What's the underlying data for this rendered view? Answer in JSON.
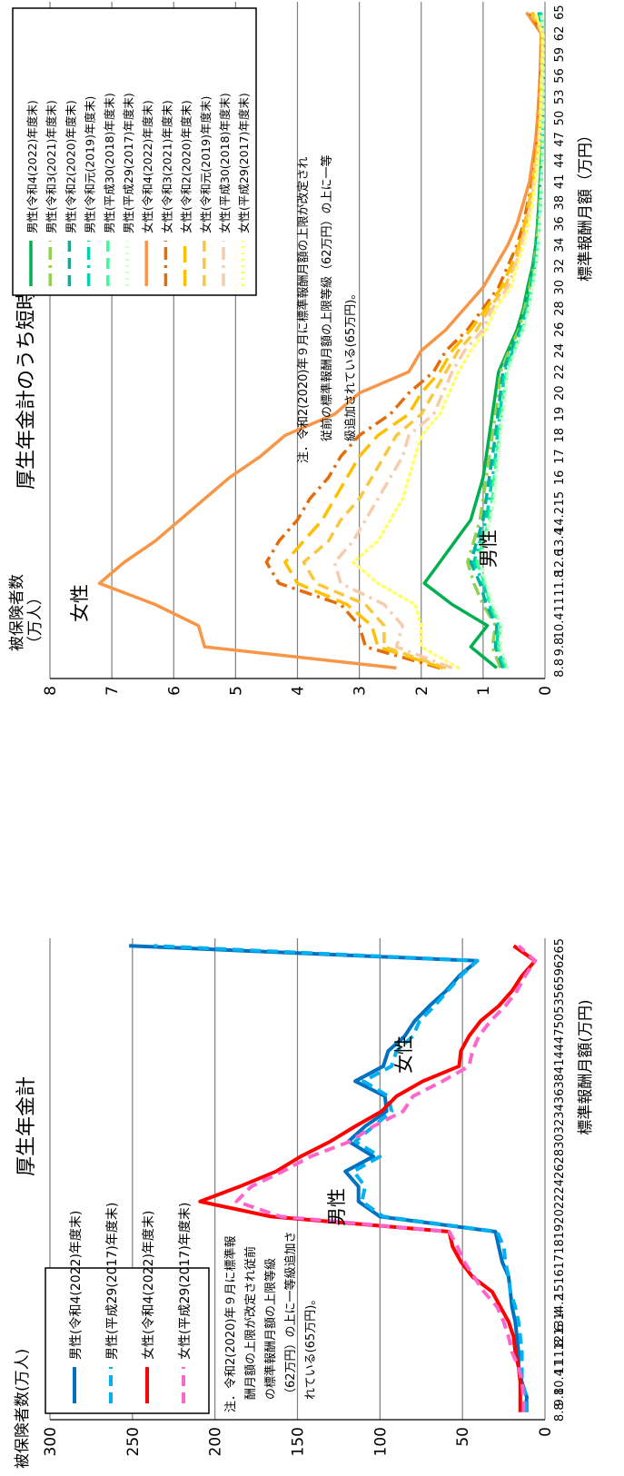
{
  "chart_data": [
    {
      "type": "line",
      "title": "厚生年金計",
      "ylabel": "被保険者数(万人)",
      "xlabel": "標準報酬月額(万円)",
      "ylim": [
        0,
        300
      ],
      "yticks": [
        "0",
        "50",
        "100",
        "150",
        "200",
        "250",
        "300"
      ],
      "grid": true,
      "legend_position": "top-left",
      "categories": [
        "8.8",
        "9.8",
        "10.4",
        "11",
        "11.8",
        "12.6",
        "13.4",
        "14.2",
        "15",
        "16",
        "17",
        "18",
        "19",
        "20",
        "22",
        "24",
        "26",
        "28",
        "30",
        "32",
        "34",
        "36",
        "38",
        "41",
        "44",
        "47",
        "50",
        "53",
        "56",
        "59",
        "62",
        "65"
      ],
      "series": [
        {
          "name": "男性(令和4(2022)年度末)",
          "color": "#0070c0",
          "dash": "solid",
          "values": [
            12,
            11,
            14,
            16,
            16,
            17,
            18,
            20,
            21,
            22,
            26,
            28,
            30,
            100,
            113,
            113,
            121,
            104,
            119,
            109,
            96,
            97,
            115,
            98,
            95,
            85,
            79,
            70,
            60,
            52,
            41,
            252
          ]
        },
        {
          "name": "男性(平成29(2017)年度末)",
          "color": "#00b0f0",
          "dash": "dashed",
          "values": [
            11,
            11,
            14,
            14,
            14,
            15,
            16,
            18,
            21,
            22,
            24,
            25,
            29,
            98,
            111,
            109,
            116,
            100,
            115,
            104,
            93,
            95,
            110,
            93,
            90,
            80,
            76,
            67,
            59,
            51,
            41,
            237
          ]
        },
        {
          "name": "女性(令和4(2022)年度末)",
          "color": "#ff0000",
          "dash": "solid",
          "values": [
            15,
            15,
            15,
            16,
            18,
            19,
            22,
            27,
            32,
            44,
            51,
            56,
            58,
            166,
            209,
            185,
            163,
            148,
            130,
            115,
            99,
            90,
            74,
            52,
            51,
            46,
            39,
            28,
            20,
            14,
            6,
            19
          ]
        },
        {
          "name": "女性(平成29(2017)年度末)",
          "color": "#ff66cc",
          "dash": "dashed",
          "values": [
            13,
            13,
            14,
            16,
            20,
            22,
            25,
            29,
            37,
            43,
            49,
            53,
            58,
            160,
            187,
            178,
            159,
            142,
            118,
            104,
            86,
            80,
            62,
            46,
            44,
            40,
            33,
            24,
            17,
            12,
            6,
            16
          ]
        }
      ],
      "annotations": [
        "男性",
        "女性"
      ],
      "note": [
        "注．令和2(2020)年９月に標準報",
        "酬月額の上限が改定され従前",
        "の標準報酬月額の上限等級",
        "（62万円）の上に一等級追加さ",
        "れている(65万円)。"
      ]
    },
    {
      "type": "line",
      "title": "厚生年金計のうち短時間労働者",
      "ylabel": [
        "被保険者数",
        "（万人）"
      ],
      "xlabel": "標準報酬月額（万円）",
      "ylim": [
        0,
        8
      ],
      "yticks": [
        "0",
        "1",
        "2",
        "3",
        "4",
        "5",
        "6",
        "7",
        "8"
      ],
      "grid": true,
      "legend_position": "top-right",
      "categories": [
        "8.8",
        "9.8",
        "10.4",
        "11",
        "11.8",
        "12.6",
        "13.4",
        "14.2",
        "15",
        "16",
        "17",
        "18",
        "19",
        "20",
        "22",
        "24",
        "26",
        "28",
        "30",
        "32",
        "34",
        "36",
        "38",
        "41",
        "44",
        "47",
        "50",
        "53",
        "56",
        "59",
        "62",
        "65"
      ],
      "series": [
        {
          "name": "男性(令和4(2022)年度末)",
          "color": "#00b050",
          "dash": "solid",
          "values": [
            0.78,
            1.2,
            0.93,
            1.5,
            1.95,
            1.7,
            1.45,
            1.2,
            1.1,
            1.0,
            0.95,
            0.9,
            0.85,
            0.8,
            0.75,
            0.6,
            0.45,
            0.35,
            0.28,
            0.2,
            0.15,
            0.12,
            0.1,
            0.08,
            0.06,
            0.05,
            0.04,
            0.04,
            0.03,
            0.03,
            0.03,
            0.1
          ]
        },
        {
          "name": "男性(令和3(2021)年度末)",
          "color": "#92d050",
          "dash": "dashdot",
          "values": [
            0.72,
            0.85,
            0.8,
            1.0,
            1.15,
            1.25,
            1.15,
            1.05,
            1.0,
            0.95,
            0.9,
            0.85,
            0.8,
            0.75,
            0.72,
            0.58,
            0.42,
            0.33,
            0.25,
            0.18,
            0.14,
            0.11,
            0.09,
            0.07,
            0.06,
            0.05,
            0.04,
            0.04,
            0.03,
            0.03,
            0.03,
            0.09
          ]
        },
        {
          "name": "男性(令和2(2020)年度末)",
          "color": "#00b0a0",
          "dash": "dashed",
          "values": [
            0.68,
            0.8,
            0.78,
            0.95,
            1.05,
            1.2,
            1.1,
            1.0,
            0.95,
            0.9,
            0.85,
            0.8,
            0.76,
            0.72,
            0.68,
            0.55,
            0.4,
            0.3,
            0.23,
            0.17,
            0.13,
            0.1,
            0.08,
            0.07,
            0.05,
            0.04,
            0.04,
            0.03,
            0.03,
            0.03,
            0.03,
            0.08
          ]
        },
        {
          "name": "男性(令和元(2019)年度末)",
          "color": "#00d2b0",
          "dash": "dashdot",
          "values": [
            0.65,
            0.78,
            0.75,
            0.9,
            1.0,
            1.15,
            1.05,
            0.95,
            0.9,
            0.85,
            0.8,
            0.77,
            0.73,
            0.69,
            0.65,
            0.52,
            0.38,
            0.29,
            0.22,
            0.16,
            0.12,
            0.1,
            0.08,
            0.06,
            0.05,
            0.04,
            0.04,
            0.03,
            0.03,
            0.03,
            0.03,
            0.07
          ]
        },
        {
          "name": "男性(平成30(2018)年度末)",
          "color": "#33ff99",
          "dash": "dashed",
          "values": [
            0.62,
            0.75,
            0.72,
            0.88,
            0.98,
            1.1,
            1.0,
            0.9,
            0.85,
            0.82,
            0.78,
            0.74,
            0.7,
            0.66,
            0.62,
            0.5,
            0.36,
            0.27,
            0.21,
            0.15,
            0.11,
            0.09,
            0.07,
            0.06,
            0.05,
            0.04,
            0.03,
            0.03,
            0.03,
            0.03,
            0.03,
            0.06
          ]
        },
        {
          "name": "男性(平成29(2017)年度末)",
          "color": "#ccffcc",
          "dash": "dotted",
          "values": [
            0.6,
            0.72,
            0.7,
            0.85,
            0.95,
            1.05,
            0.98,
            0.88,
            0.82,
            0.79,
            0.75,
            0.72,
            0.68,
            0.64,
            0.6,
            0.48,
            0.35,
            0.26,
            0.2,
            0.14,
            0.11,
            0.09,
            0.07,
            0.06,
            0.04,
            0.04,
            0.03,
            0.03,
            0.03,
            0.03,
            0.03,
            0.06
          ]
        },
        {
          "name": "女性(令和4(2022)年度末)",
          "color": "#f79646",
          "dash": "solid",
          "values": [
            2.4,
            5.5,
            5.6,
            6.3,
            7.2,
            6.8,
            6.3,
            5.9,
            5.5,
            5.1,
            4.6,
            4.2,
            3.4,
            3.0,
            2.2,
            2.0,
            1.6,
            1.3,
            1.0,
            0.8,
            0.6,
            0.45,
            0.35,
            0.25,
            0.2,
            0.15,
            0.12,
            0.1,
            0.08,
            0.07,
            0.06,
            0.3
          ]
        },
        {
          "name": "女性(令和3(2021)年度末)",
          "color": "#e46c0a",
          "dash": "dashdot",
          "values": [
            1.7,
            2.9,
            3.0,
            3.3,
            4.3,
            4.5,
            4.3,
            4.0,
            3.8,
            3.5,
            3.3,
            3.0,
            2.5,
            2.2,
            1.8,
            1.6,
            1.25,
            1.0,
            0.75,
            0.6,
            0.45,
            0.35,
            0.28,
            0.2,
            0.16,
            0.12,
            0.1,
            0.08,
            0.07,
            0.06,
            0.05,
            0.25
          ]
        },
        {
          "name": "女性(令和2(2020)年度末)",
          "color": "#ffc000",
          "dash": "longdash",
          "values": [
            1.65,
            2.7,
            2.8,
            3.2,
            4.0,
            4.2,
            3.9,
            3.6,
            3.4,
            3.2,
            3.0,
            2.7,
            2.2,
            2.0,
            1.7,
            1.5,
            1.2,
            0.95,
            0.7,
            0.55,
            0.42,
            0.33,
            0.26,
            0.19,
            0.15,
            0.11,
            0.09,
            0.07,
            0.06,
            0.05,
            0.05,
            0.22
          ]
        },
        {
          "name": "女性(令和元(2019)年度末)",
          "color": "#f9c73c",
          "dash": "dashed",
          "values": [
            1.6,
            2.6,
            2.6,
            2.9,
            3.7,
            3.9,
            3.5,
            3.3,
            3.0,
            2.8,
            2.6,
            2.4,
            2.0,
            1.8,
            1.6,
            1.4,
            1.1,
            0.9,
            0.65,
            0.5,
            0.4,
            0.3,
            0.24,
            0.18,
            0.14,
            0.1,
            0.08,
            0.07,
            0.06,
            0.05,
            0.05,
            0.2
          ]
        },
        {
          "name": "女性(平成30(2018)年度末)",
          "color": "#f8cbad",
          "dash": "dashdot",
          "values": [
            1.5,
            2.4,
            2.3,
            2.6,
            3.3,
            3.4,
            3.1,
            2.9,
            2.7,
            2.5,
            2.3,
            2.2,
            1.8,
            1.65,
            1.5,
            1.3,
            1.0,
            0.85,
            0.6,
            0.48,
            0.38,
            0.28,
            0.22,
            0.17,
            0.13,
            0.1,
            0.08,
            0.06,
            0.05,
            0.05,
            0.04,
            0.18
          ]
        },
        {
          "name": "女性(平成29(2017)年度末)",
          "color": "#ffff66",
          "dash": "dotted",
          "values": [
            1.4,
            2.0,
            2.0,
            2.1,
            2.7,
            3.1,
            2.7,
            2.5,
            2.3,
            2.2,
            2.1,
            2.0,
            1.7,
            1.55,
            1.4,
            1.2,
            0.95,
            0.8,
            0.55,
            0.45,
            0.35,
            0.26,
            0.2,
            0.16,
            0.12,
            0.09,
            0.07,
            0.06,
            0.05,
            0.04,
            0.04,
            0.16
          ]
        }
      ],
      "annotations": [
        "女性",
        "男性"
      ],
      "note": [
        "注．令和2(2020)年９月に標準報酬月額の上限が改定され",
        "従前の標準報酬月額の上限等級（62万円）の上に一等",
        "級追加されている(65万円)。"
      ]
    }
  ]
}
